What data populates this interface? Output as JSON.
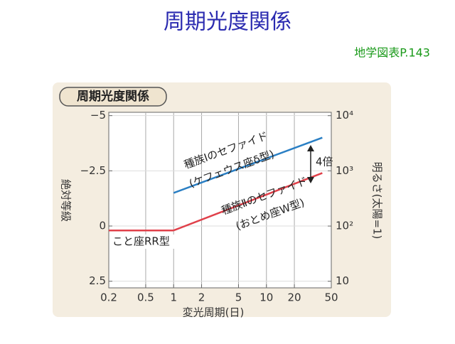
{
  "header": {
    "title": "周期光度関係",
    "source": "地学図表P.143"
  },
  "chart_data": {
    "type": "line",
    "title": "周期光度関係",
    "x_label": "変光周期(日)",
    "y_label": "絶対等級",
    "y2_label": "明るさ(太陽=1)",
    "xlog": true,
    "xlim": [
      0.2,
      50
    ],
    "xticks": [
      0.2,
      0.5,
      1,
      2,
      5,
      10,
      20,
      50
    ],
    "ylim": [
      -5.15,
      2.8
    ],
    "yinverted": true,
    "yticks": [
      {
        "value": -5,
        "label": "−5"
      },
      {
        "value": -2.5,
        "label": "−2.5"
      },
      0,
      2.5
    ],
    "y2log": true,
    "y2lim": [
      7.6,
      11500
    ],
    "y2ticks": [
      {
        "value": 10000,
        "label": "10⁴"
      },
      {
        "value": 1000,
        "label": "10³"
      },
      {
        "value": 100,
        "label": "10²"
      },
      10
    ],
    "grid": true,
    "series": [
      {
        "name": "種族Ⅰのセファイド",
        "color": "#2a7fc4",
        "x": [
          1,
          40
        ],
        "values": [
          -1.5,
          -4.0
        ]
      },
      {
        "name": "種族Ⅱのセファイド",
        "color": "#e0404a",
        "x": [
          1,
          40
        ],
        "values": [
          0.2,
          -2.4
        ]
      },
      {
        "name": "こと座RR型",
        "color": "#e0404a",
        "x": [
          0.2,
          1
        ],
        "values": [
          0.2,
          0.2
        ]
      }
    ],
    "annotations": [
      "(ケフェウス座δ型)",
      "(おとめ座W型)",
      "4倍"
    ]
  }
}
